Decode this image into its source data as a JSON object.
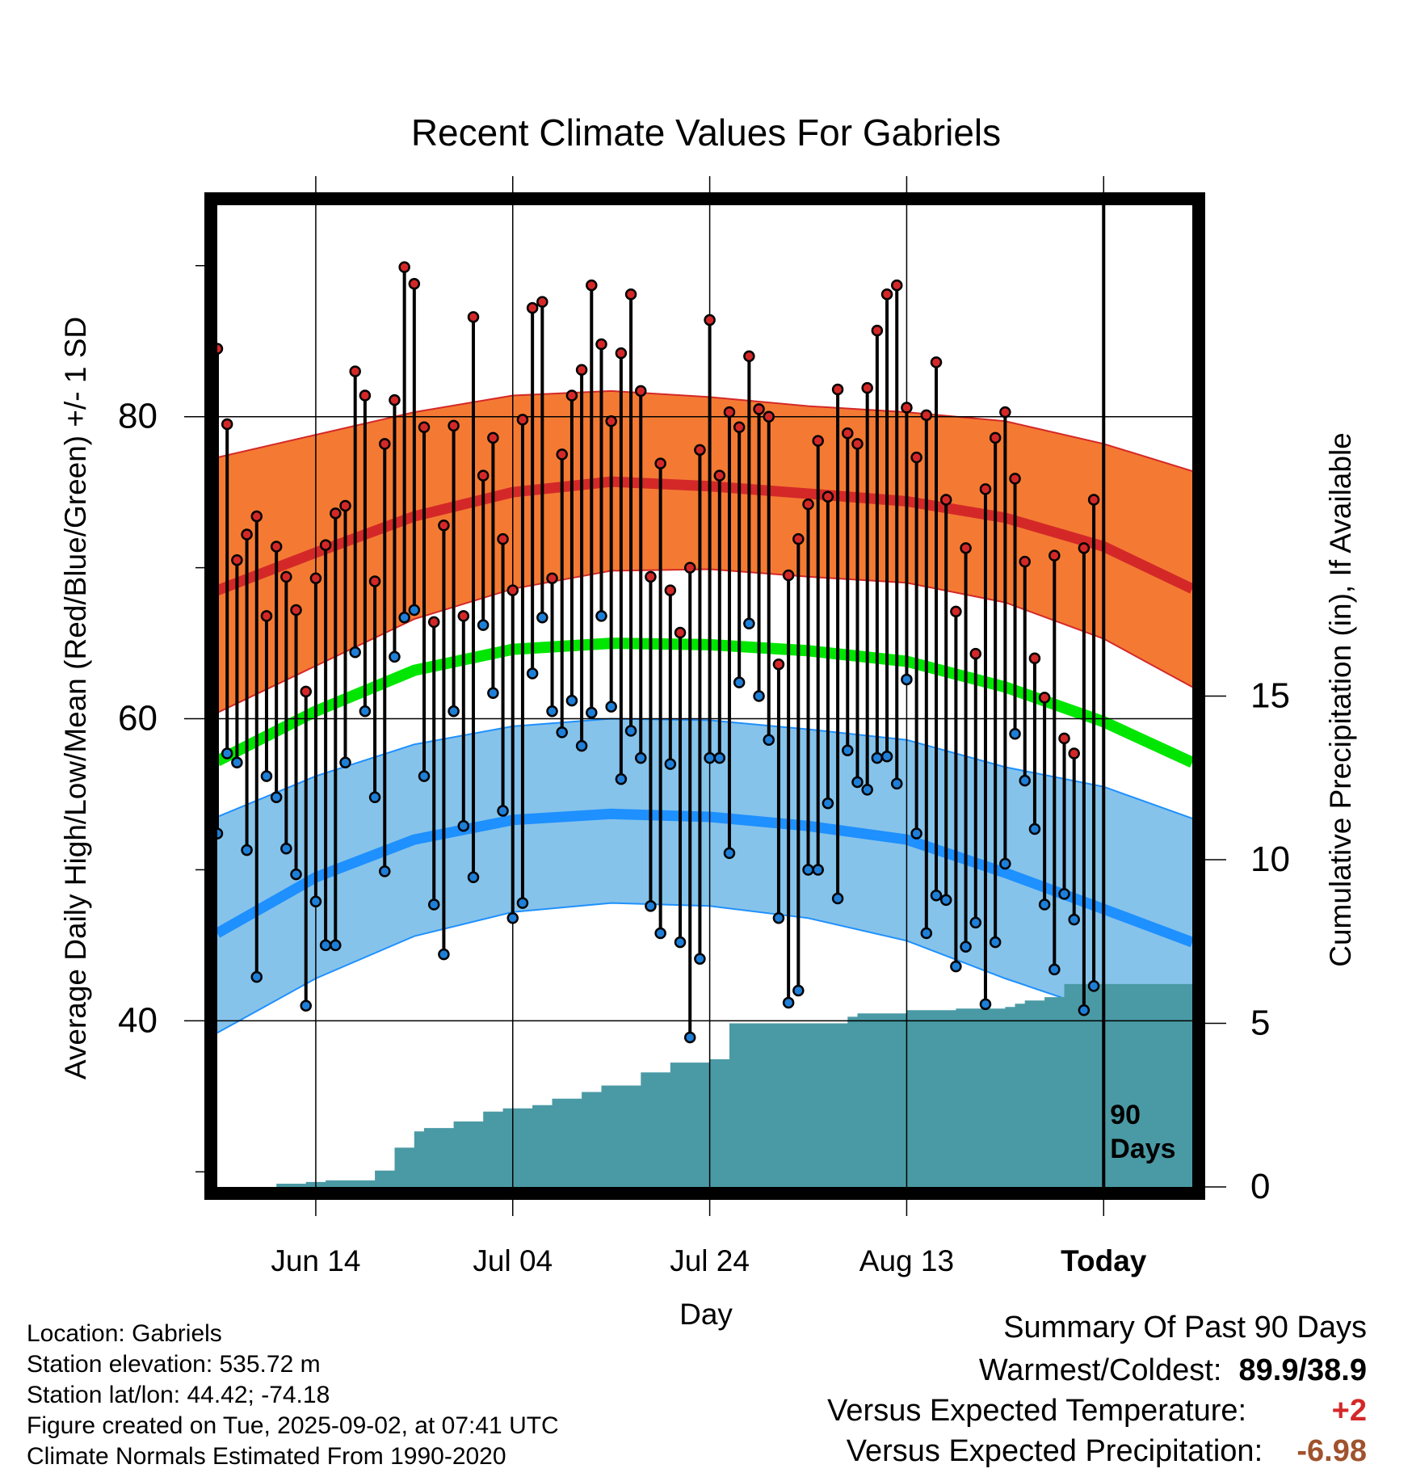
{
  "chart_data": {
    "type": "line",
    "title": "Recent Climate Values For Gabriels",
    "xlabel": "Day",
    "ylabel": "Average Daily High/Low/Mean (Red/Blue/Green) +/- 1 SD",
    "y2label": "Cumulative Precipitation (in), If Available",
    "x_ticks": [
      "Jun 14",
      "Jul 04",
      "Jul 24",
      "Aug 13",
      "Today"
    ],
    "y_ticks": [
      40,
      60,
      80
    ],
    "y2_ticks": [
      0,
      5,
      10,
      15
    ],
    "ylim": [
      29,
      94
    ],
    "y2lim": [
      0,
      30
    ],
    "annotation": "90 Days",
    "start_date": "2025-06-04",
    "today": "2025-09-02",
    "end_date": "2025-09-11",
    "colors": {
      "high_band": "#f47a33",
      "high_mean": "#d42828",
      "low_band": "#86c3ea",
      "low_mean": "#1e90ff",
      "mean": "#00e600",
      "precip": "#4a9aa5",
      "high_dot": "#d42828",
      "low_dot": "#1e7fd8"
    },
    "normals": {
      "dates": [
        "2025-06-04",
        "2025-06-14",
        "2025-06-24",
        "2025-07-04",
        "2025-07-14",
        "2025-07-24",
        "2025-08-03",
        "2025-08-13",
        "2025-08-23",
        "2025-09-02",
        "2025-09-11"
      ],
      "high_mean": [
        68.5,
        71.0,
        73.4,
        75.0,
        75.7,
        75.4,
        74.9,
        74.4,
        73.3,
        71.4,
        68.6
      ],
      "high_sd_upper": [
        77.3,
        78.8,
        80.3,
        81.4,
        81.7,
        81.3,
        80.7,
        80.3,
        79.7,
        78.2,
        76.4
      ],
      "high_sd_lower": [
        60.4,
        63.5,
        66.6,
        68.6,
        69.8,
        69.9,
        69.4,
        69.0,
        67.7,
        65.3,
        62.1
      ],
      "mean": [
        57.2,
        60.5,
        63.2,
        64.6,
        65.0,
        64.9,
        64.5,
        63.8,
        62.1,
        59.8,
        57.1
      ],
      "low_mean": [
        45.8,
        49.5,
        52.0,
        53.3,
        53.7,
        53.5,
        52.9,
        52.0,
        49.8,
        47.4,
        45.2
      ],
      "low_sd_upper": [
        53.5,
        56.2,
        58.3,
        59.5,
        60.0,
        59.9,
        59.3,
        58.6,
        56.8,
        55.5,
        53.4
      ],
      "low_sd_lower": [
        39.2,
        42.8,
        45.6,
        47.2,
        47.8,
        47.6,
        46.8,
        45.3,
        42.8,
        40.6,
        38.2
      ]
    },
    "daily": {
      "high": [
        84.5,
        79.5,
        70.5,
        72.2,
        73.4,
        66.8,
        71.4,
        69.4,
        67.2,
        61.8,
        69.3,
        71.5,
        73.6,
        74.1,
        83.0,
        81.4,
        69.1,
        78.2,
        81.1,
        89.9,
        88.8,
        79.3,
        66.4,
        72.8,
        79.4,
        66.8,
        86.6,
        76.1,
        78.6,
        71.9,
        68.5,
        79.8,
        87.2,
        87.6,
        69.3,
        77.5,
        81.4,
        83.1,
        88.7,
        84.8,
        79.7,
        84.2,
        88.1,
        81.7,
        69.4,
        76.9,
        68.5,
        65.7,
        70.0,
        77.8,
        86.4,
        76.1,
        80.3,
        79.3,
        84.0,
        80.5,
        80.0,
        63.6,
        69.5,
        71.9,
        74.2,
        78.4,
        74.7,
        81.8,
        78.9,
        78.2,
        81.9,
        85.7,
        88.1,
        88.7,
        80.6,
        77.3,
        80.1,
        83.6,
        74.5,
        67.1,
        71.3,
        64.3,
        75.2,
        78.6,
        80.3,
        75.9,
        70.4,
        64.0,
        61.4,
        70.8,
        58.7,
        57.7,
        71.3,
        74.5
      ],
      "low": [
        52.4,
        57.7,
        57.1,
        51.3,
        42.9,
        56.2,
        54.8,
        51.4,
        49.7,
        41.0,
        47.9,
        45.0,
        45.0,
        57.1,
        64.4,
        60.5,
        54.8,
        49.9,
        64.1,
        66.7,
        67.2,
        56.2,
        47.7,
        44.4,
        60.5,
        52.9,
        49.5,
        66.2,
        61.7,
        53.9,
        46.8,
        47.8,
        63.0,
        66.7,
        60.5,
        59.1,
        61.2,
        58.2,
        60.4,
        66.8,
        60.8,
        56.0,
        59.2,
        57.4,
        47.6,
        45.8,
        57.0,
        45.2,
        38.9,
        44.1,
        57.4,
        57.4,
        51.1,
        62.4,
        66.3,
        61.5,
        58.6,
        46.8,
        41.2,
        42.0,
        50.0,
        50.0,
        54.4,
        48.1,
        57.9,
        55.8,
        55.3,
        57.4,
        57.5,
        55.7,
        62.6,
        52.4,
        45.8,
        48.3,
        48.0,
        43.6,
        44.9,
        46.5,
        41.1,
        45.2,
        50.4,
        59.0,
        55.9,
        52.7,
        47.7,
        43.4,
        48.4,
        46.7,
        40.7,
        42.3
      ]
    },
    "precip_cumulative": [
      0,
      0,
      0,
      0,
      0,
      0,
      0.1,
      0.1,
      0.1,
      0.15,
      0.15,
      0.2,
      0.2,
      0.2,
      0.2,
      0.2,
      0.5,
      0.5,
      1.2,
      1.2,
      1.7,
      1.8,
      1.8,
      1.8,
      2.0,
      2.0,
      2.0,
      2.3,
      2.3,
      2.4,
      2.4,
      2.4,
      2.5,
      2.5,
      2.7,
      2.7,
      2.7,
      2.9,
      2.9,
      3.1,
      3.1,
      3.1,
      3.1,
      3.5,
      3.5,
      3.5,
      3.8,
      3.8,
      3.8,
      3.8,
      3.9,
      3.9,
      5.0,
      5.0,
      5.0,
      5.0,
      5.0,
      5.0,
      5.0,
      5.0,
      5.0,
      5.0,
      5.0,
      5.0,
      5.2,
      5.3,
      5.3,
      5.3,
      5.3,
      5.3,
      5.4,
      5.4,
      5.4,
      5.4,
      5.4,
      5.45,
      5.45,
      5.45,
      5.45,
      5.45,
      5.5,
      5.6,
      5.7,
      5.7,
      5.8,
      5.8,
      6.2,
      6.2,
      6.2,
      6.2,
      6.2
    ]
  },
  "info": {
    "location": "Location: Gabriels",
    "elevation": "Station elevation: 535.72 m",
    "latlon": "Station lat/lon: 44.42; -74.18",
    "created": "Figure created on Tue, 2025-09-02, at 07:41 UTC",
    "normals": "Climate Normals Estimated From 1990-2020"
  },
  "summary": {
    "heading": "Summary Of Past 90 Days",
    "warm_cold_label": "Warmest/Coldest:",
    "warm_cold_value": "89.9/38.9",
    "temp_label": "Versus Expected Temperature:",
    "temp_value": "+2",
    "temp_color": "#d42828",
    "precip_label": "Versus Expected Precipitation:",
    "precip_value": "-6.98",
    "precip_color": "#a0522d"
  }
}
